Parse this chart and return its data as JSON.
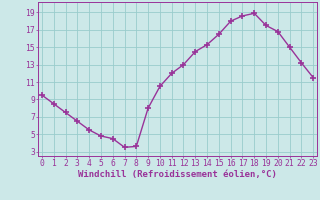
{
  "x": [
    0,
    1,
    2,
    3,
    4,
    5,
    6,
    7,
    8,
    9,
    10,
    11,
    12,
    13,
    14,
    15,
    16,
    17,
    18,
    19,
    20,
    21,
    22,
    23
  ],
  "y": [
    9.5,
    8.5,
    7.5,
    6.5,
    5.5,
    4.8,
    4.5,
    3.5,
    3.6,
    8.0,
    10.5,
    12.0,
    13.0,
    14.5,
    15.3,
    16.5,
    18.0,
    18.6,
    18.9,
    17.5,
    16.8,
    15.0,
    13.2,
    11.5
  ],
  "line_color": "#993399",
  "marker": "+",
  "markersize": 4,
  "markeredgewidth": 1.2,
  "linewidth": 1.0,
  "bg_color": "#cce8e8",
  "grid_color": "#99cccc",
  "xlabel": "Windchill (Refroidissement éolien,°C)",
  "xlabel_color": "#993399",
  "xlabel_fontsize": 6.5,
  "ylabel_ticks": [
    3,
    5,
    7,
    9,
    11,
    13,
    15,
    17,
    19
  ],
  "xlabel_ticks": [
    0,
    1,
    2,
    3,
    4,
    5,
    6,
    7,
    8,
    9,
    10,
    11,
    12,
    13,
    14,
    15,
    16,
    17,
    18,
    19,
    20,
    21,
    22,
    23
  ],
  "xlim": [
    -0.3,
    23.3
  ],
  "ylim": [
    2.5,
    20.2
  ],
  "tick_color": "#993399",
  "tick_fontsize": 5.8,
  "tick_label_color": "#993399",
  "spine_color": "#993399"
}
